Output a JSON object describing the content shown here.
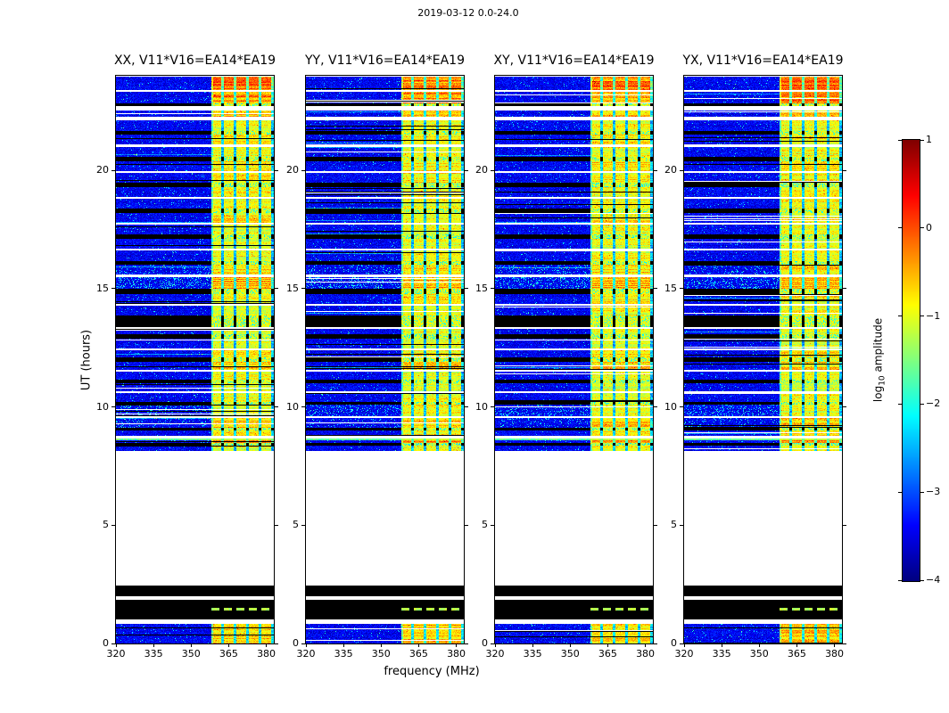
{
  "figure": {
    "title": "2019-03-12 0.0-24.0",
    "xlabel": "frequency (MHz)",
    "ylabel": "UT (hours)",
    "background": "#ffffff"
  },
  "chart_data": {
    "type": "heatmap",
    "title": "2019-03-12 0.0-24.0",
    "xlabel": "frequency (MHz)",
    "ylabel": "UT (hours)",
    "x_range_mhz": [
      320,
      383
    ],
    "y_range_hours": [
      0,
      24
    ],
    "xticks": [
      320,
      335,
      350,
      365,
      380
    ],
    "yticks": [
      0,
      5,
      10,
      15,
      20
    ],
    "colormap": "jet",
    "grid": false,
    "colorbar": {
      "label": "log10 amplitude",
      "label_prefix": "log",
      "label_sub": "10",
      "label_suffix": " amplitude",
      "ticks": [
        1,
        0,
        -1,
        -2,
        -3,
        -4
      ],
      "range": [
        -4,
        1
      ]
    },
    "panels": [
      {
        "title": "XX, V11*V16=EA14*EA19",
        "seed": 101
      },
      {
        "title": "YY, V11*V16=EA14*EA19",
        "seed": 202
      },
      {
        "title": "XY, V11*V16=EA14*EA19",
        "seed": 303
      },
      {
        "title": "YX, V11*V16=EA14*EA19",
        "seed": 404
      }
    ],
    "rfi_band_mhz": [
      358,
      383
    ],
    "noise_floor_log10": -3.7,
    "time_segments": [
      {
        "t0": 0.0,
        "t1": 0.85,
        "type": "noise",
        "band": 1.2
      },
      {
        "t0": 0.85,
        "t1": 1.02,
        "type": "white"
      },
      {
        "t0": 1.02,
        "t1": 1.42,
        "type": "black",
        "band": 0
      },
      {
        "t0": 1.42,
        "t1": 1.52,
        "type": "dash",
        "band": 1.1
      },
      {
        "t0": 1.52,
        "t1": 1.88,
        "type": "black",
        "band": 0
      },
      {
        "t0": 1.88,
        "t1": 2.02,
        "type": "white"
      },
      {
        "t0": 2.02,
        "t1": 2.48,
        "type": "black",
        "band": 0.15
      },
      {
        "t0": 2.48,
        "t1": 8.15,
        "type": "white"
      },
      {
        "t0": 8.15,
        "t1": 8.38,
        "type": "noise",
        "band": 1.0
      },
      {
        "t0": 8.38,
        "t1": 8.48,
        "type": "black",
        "band": 0.8
      },
      {
        "t0": 8.48,
        "t1": 8.62,
        "type": "noise",
        "band": 1.35
      },
      {
        "t0": 8.62,
        "t1": 8.68,
        "type": "hline",
        "band": 1.3
      },
      {
        "t0": 8.68,
        "t1": 8.78,
        "type": "white"
      },
      {
        "t0": 8.78,
        "t1": 9.02,
        "type": "noise",
        "band": 1.1
      },
      {
        "t0": 9.02,
        "t1": 9.12,
        "type": "black",
        "band": 0.9
      },
      {
        "t0": 9.12,
        "t1": 9.55,
        "type": "noise",
        "band": 1.2,
        "speckle": 0.06
      },
      {
        "t0": 9.55,
        "t1": 9.62,
        "type": "white"
      },
      {
        "t0": 9.62,
        "t1": 10.1,
        "type": "noise",
        "band": 1.0,
        "speckle": 0.12
      },
      {
        "t0": 10.1,
        "t1": 10.22,
        "type": "black",
        "band": 0.9
      },
      {
        "t0": 10.22,
        "t1": 10.6,
        "type": "noise",
        "band": 1.0
      },
      {
        "t0": 10.6,
        "t1": 10.68,
        "type": "white"
      },
      {
        "t0": 10.68,
        "t1": 11.02,
        "type": "noise",
        "band": 0.9
      },
      {
        "t0": 11.02,
        "t1": 11.18,
        "type": "black",
        "band": 0.9
      },
      {
        "t0": 11.18,
        "t1": 11.52,
        "type": "noise",
        "band": 1.0
      },
      {
        "t0": 11.52,
        "t1": 11.6,
        "type": "white"
      },
      {
        "t0": 11.6,
        "t1": 11.92,
        "type": "noise",
        "band": 1.2
      },
      {
        "t0": 11.92,
        "t1": 12.1,
        "type": "black",
        "band": 1.0
      },
      {
        "t0": 12.1,
        "t1": 12.42,
        "type": "noise",
        "band": 1.1
      },
      {
        "t0": 12.42,
        "t1": 12.5,
        "type": "white"
      },
      {
        "t0": 12.5,
        "t1": 12.92,
        "type": "noise",
        "band": 0.9
      },
      {
        "t0": 12.92,
        "t1": 13.1,
        "type": "black",
        "band": 0.9
      },
      {
        "t0": 13.1,
        "t1": 13.32,
        "type": "noise",
        "band": 1.0
      },
      {
        "t0": 13.32,
        "t1": 13.4,
        "type": "white"
      },
      {
        "t0": 13.4,
        "t1": 13.88,
        "type": "black",
        "band": 1.0
      },
      {
        "t0": 13.88,
        "t1": 14.3,
        "type": "noise",
        "band": 1.0
      },
      {
        "t0": 14.3,
        "t1": 14.38,
        "type": "white"
      },
      {
        "t0": 14.38,
        "t1": 14.8,
        "type": "noise",
        "band": 1.1
      },
      {
        "t0": 14.8,
        "t1": 15.0,
        "type": "black",
        "band": 1.0
      },
      {
        "t0": 15.0,
        "t1": 15.52,
        "type": "noise",
        "band": 1.3,
        "speckle": 0.15
      },
      {
        "t0": 15.52,
        "t1": 15.6,
        "type": "white"
      },
      {
        "t0": 15.6,
        "t1": 16.02,
        "type": "noise",
        "band": 1.15,
        "speckle": 0.08
      },
      {
        "t0": 16.02,
        "t1": 16.2,
        "type": "black",
        "band": 0.9
      },
      {
        "t0": 16.2,
        "t1": 16.62,
        "type": "noise",
        "band": 1.0
      },
      {
        "t0": 16.62,
        "t1": 16.72,
        "type": "white"
      },
      {
        "t0": 16.72,
        "t1": 17.12,
        "type": "noise",
        "band": 0.95
      },
      {
        "t0": 17.12,
        "t1": 17.3,
        "type": "black",
        "band": 0.9
      },
      {
        "t0": 17.3,
        "t1": 17.72,
        "type": "noise",
        "band": 1.0
      },
      {
        "t0": 17.72,
        "t1": 17.8,
        "type": "white"
      },
      {
        "t0": 17.8,
        "t1": 18.22,
        "type": "noise",
        "band": 1.1
      },
      {
        "t0": 18.22,
        "t1": 18.4,
        "type": "black",
        "band": 1.0
      },
      {
        "t0": 18.4,
        "t1": 18.82,
        "type": "noise",
        "band": 1.0
      },
      {
        "t0": 18.82,
        "t1": 18.9,
        "type": "white"
      },
      {
        "t0": 18.9,
        "t1": 19.32,
        "type": "noise",
        "band": 1.05
      },
      {
        "t0": 19.32,
        "t1": 19.5,
        "type": "black",
        "band": 0.9
      },
      {
        "t0": 19.5,
        "t1": 19.92,
        "type": "noise",
        "band": 1.1
      },
      {
        "t0": 19.92,
        "t1": 20.0,
        "type": "white"
      },
      {
        "t0": 20.0,
        "t1": 20.42,
        "type": "noise",
        "band": 1.15
      },
      {
        "t0": 20.42,
        "t1": 20.6,
        "type": "black",
        "band": 1.0
      },
      {
        "t0": 20.6,
        "t1": 21.02,
        "type": "noise",
        "band": 1.0
      },
      {
        "t0": 21.02,
        "t1": 21.1,
        "type": "white"
      },
      {
        "t0": 21.1,
        "t1": 21.52,
        "type": "noise",
        "band": 1.1
      },
      {
        "t0": 21.52,
        "t1": 21.7,
        "type": "black",
        "band": 1.0
      },
      {
        "t0": 21.7,
        "t1": 22.12,
        "type": "noise",
        "band": 1.0
      },
      {
        "t0": 22.12,
        "t1": 22.3,
        "type": "white"
      },
      {
        "t0": 22.3,
        "t1": 22.55,
        "type": "noise",
        "band": 1.2
      },
      {
        "t0": 22.55,
        "t1": 22.75,
        "type": "white"
      },
      {
        "t0": 22.75,
        "t1": 22.85,
        "type": "black",
        "band": 1.0
      },
      {
        "t0": 22.85,
        "t1": 23.35,
        "type": "noise",
        "band": 1.45
      },
      {
        "t0": 23.35,
        "t1": 23.42,
        "type": "white"
      },
      {
        "t0": 23.42,
        "t1": 24.0,
        "type": "noise",
        "band": 1.5
      }
    ]
  }
}
